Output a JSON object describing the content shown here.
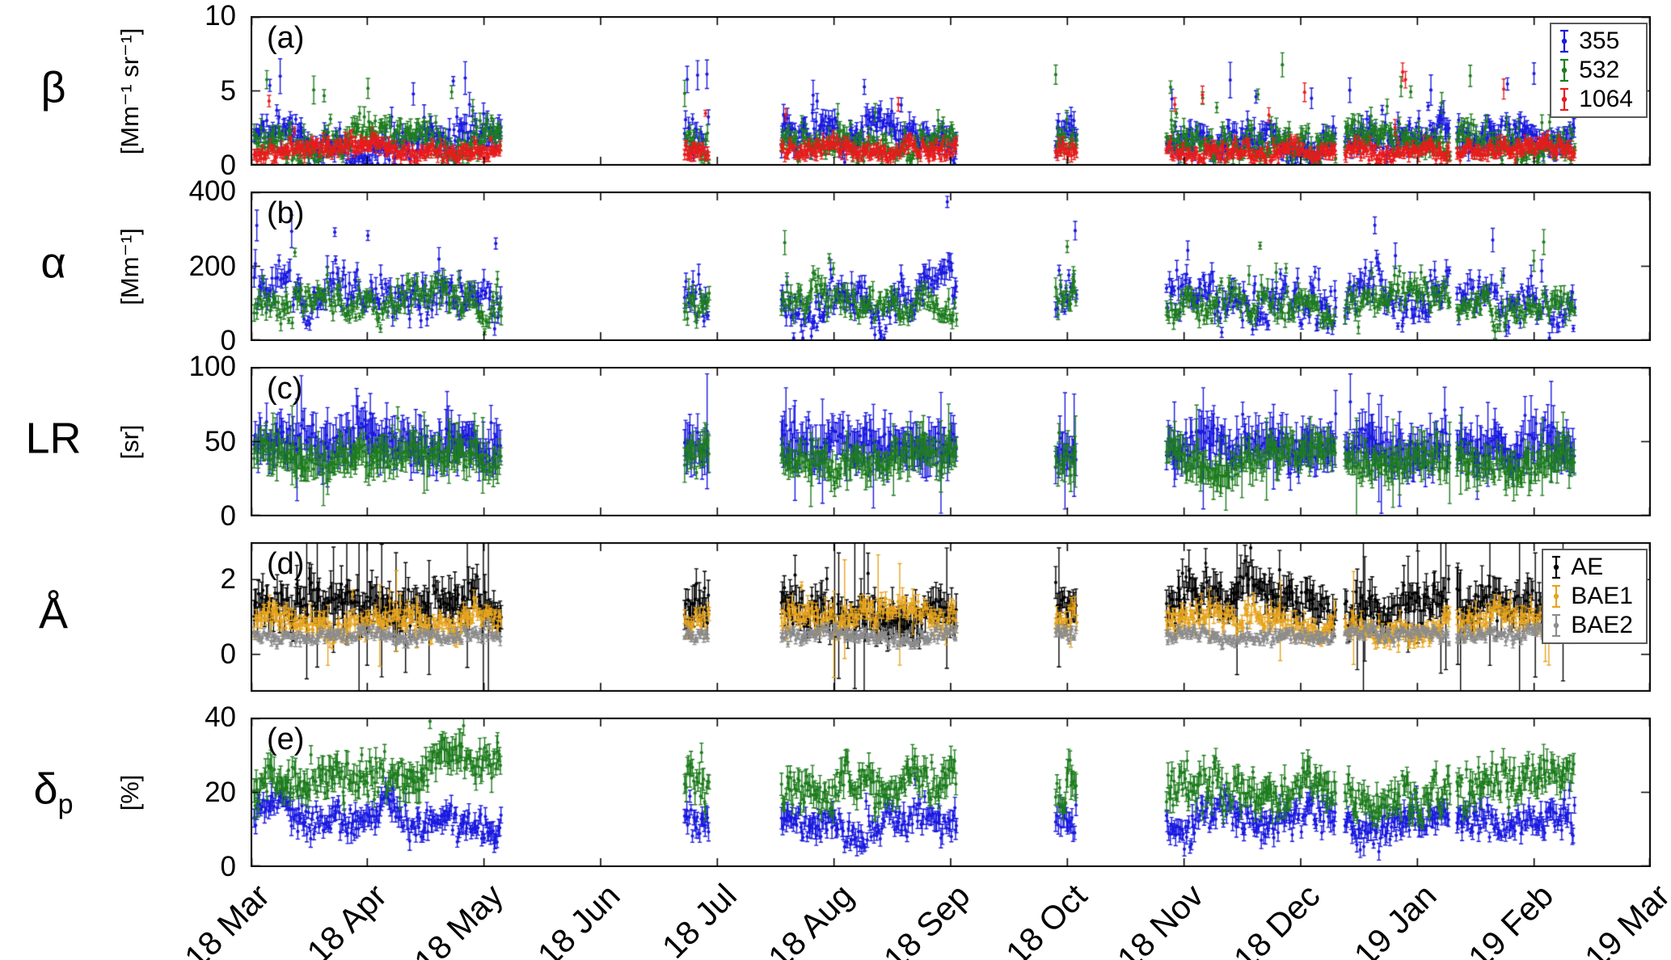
{
  "chart_data": {
    "type": "scatter",
    "description": "Five stacked time-series panels (a)-(e) of lidar-derived aerosol optical properties with vertical error bars, measured from March 2018 to March 2019. Dense point clouds with seasonal data gaps (no data mid-May to late June, most of June-mid July, late September, mid October to early November).",
    "grid": false,
    "x_axis": {
      "tick_labels": [
        "18 Mar",
        "18 Apr",
        "18 May",
        "18 Jun",
        "18 Jul",
        "18 Aug",
        "18 Sep",
        "18 Oct",
        "18 Nov",
        "18 Dec",
        "19 Jan",
        "19 Feb",
        "19 Mar"
      ],
      "range_months": [
        0,
        12
      ],
      "tick_rotation_deg": 45
    },
    "data_segments_months": [
      [
        0.03,
        2.15
      ],
      [
        3.72,
        3.93
      ],
      [
        4.55,
        6.05
      ],
      [
        6.9,
        7.08
      ],
      [
        7.85,
        9.3
      ],
      [
        9.38,
        10.28
      ],
      [
        10.34,
        11.35
      ]
    ],
    "panels": [
      {
        "id": "a",
        "tag": "(a)",
        "ylabel": "β",
        "ysub": "",
        "yunits": "[Mm⁻¹ sr⁻¹]",
        "ylim": [
          0,
          10
        ],
        "yticks": [
          0,
          5,
          10
        ],
        "show_legend": true,
        "legend_position": "top-right",
        "series": [
          {
            "name": "355",
            "color": "#1a1ae0",
            "typical_range": [
              0.3,
              6
            ],
            "base": 1.9,
            "drift": 1.6,
            "noise": 1.3,
            "spikeP": 0.05,
            "spikeAmp": 4.5,
            "vmin": 0.15,
            "vmax": 9.8,
            "err0": 0.35,
            "errF": 0.12,
            "errBigP": 0,
            "errBig": 0,
            "dx": 0.009
          },
          {
            "name": "532",
            "color": "#1e7d1e",
            "typical_range": [
              0.3,
              6
            ],
            "base": 1.7,
            "drift": 1.5,
            "noise": 1.2,
            "spikeP": 0.05,
            "spikeAmp": 5.0,
            "vmin": 0.15,
            "vmax": 9.8,
            "err0": 0.3,
            "errF": 0.12,
            "errBigP": 0,
            "errBig": 0,
            "dx": 0.009
          },
          {
            "name": "1064",
            "color": "#e81c1c",
            "typical_range": [
              0.3,
              2.5
            ],
            "base": 1.0,
            "drift": 0.8,
            "noise": 0.7,
            "spikeP": 0.025,
            "spikeAmp": 5.5,
            "vmin": 0.1,
            "vmax": 9.5,
            "err0": 0.25,
            "errF": 0.1,
            "errBigP": 0,
            "errBig": 0,
            "dx": 0.009
          }
        ]
      },
      {
        "id": "b",
        "tag": "(b)",
        "ylabel": "α",
        "ysub": "",
        "yunits": "[Mm⁻¹]",
        "ylim": [
          0,
          400
        ],
        "yticks": [
          0,
          200,
          400
        ],
        "show_legend": false,
        "series": [
          {
            "name": "355",
            "color": "#1a1ae0",
            "typical_range": [
              20,
              300
            ],
            "base": 115,
            "drift": 130,
            "noise": 65,
            "spikeP": 0.04,
            "spikeAmp": 170,
            "vmin": 8,
            "vmax": 398,
            "err0": 14,
            "errF": 0.1,
            "errBigP": 0,
            "errBig": 0,
            "dx": 0.011
          },
          {
            "name": "532",
            "color": "#1e7d1e",
            "typical_range": [
              20,
              250
            ],
            "base": 88,
            "drift": 100,
            "noise": 50,
            "spikeP": 0.03,
            "spikeAmp": 150,
            "vmin": 8,
            "vmax": 398,
            "err0": 12,
            "errF": 0.1,
            "errBigP": 0,
            "errBig": 0,
            "dx": 0.011
          }
        ]
      },
      {
        "id": "c",
        "tag": "(c)",
        "ylabel": "LR",
        "ysub": "",
        "yunits": "[sr]",
        "ylim": [
          0,
          100
        ],
        "yticks": [
          0,
          50,
          100
        ],
        "show_legend": false,
        "series": [
          {
            "name": "355",
            "color": "#1a1ae0",
            "typical_range": [
              25,
              70
            ],
            "base": 46,
            "drift": 22,
            "noise": 14,
            "spikeP": 0.03,
            "spikeAmp": 28,
            "vmin": 12,
            "vmax": 99,
            "err0": 8,
            "errF": 0.1,
            "errBigP": 0.04,
            "errBig": 18,
            "dx": 0.011
          },
          {
            "name": "532",
            "color": "#1e7d1e",
            "typical_range": [
              25,
              60
            ],
            "base": 40,
            "drift": 18,
            "noise": 11,
            "spikeP": 0.02,
            "spikeAmp": 22,
            "vmin": 12,
            "vmax": 95,
            "err0": 7,
            "errF": 0.08,
            "errBigP": 0.03,
            "errBig": 15,
            "dx": 0.011
          }
        ]
      },
      {
        "id": "d",
        "tag": "(d)",
        "ylabel": "Å",
        "ysub": "",
        "yunits": "",
        "ylim": [
          -1,
          3
        ],
        "yticks": [
          0,
          2
        ],
        "show_legend": true,
        "legend_position": "top-right",
        "series": [
          {
            "name": "AE",
            "color": "#000000",
            "typical_range": [
              0.3,
              2.2
            ],
            "base": 1.25,
            "drift": 0.8,
            "noise": 0.55,
            "spikeP": 0.04,
            "spikeAmp": 0.9,
            "vmin": -0.55,
            "vmax": 2.85,
            "err0": 0.28,
            "errF": 0.1,
            "errBigP": 0.06,
            "errBig": 1.5,
            "dx": 0.011
          },
          {
            "name": "BAE1",
            "color": "#e6a41e",
            "typical_range": [
              0.2,
              1.8
            ],
            "base": 0.85,
            "drift": 0.6,
            "noise": 0.4,
            "spikeP": 0.03,
            "spikeAmp": 0.7,
            "vmin": -0.4,
            "vmax": 2.3,
            "err0": 0.14,
            "errF": 0.08,
            "errBigP": 0.02,
            "errBig": 0.8,
            "dx": 0.011
          },
          {
            "name": "BAE2",
            "color": "#8c8c8c",
            "typical_range": [
              0.2,
              1.0
            ],
            "base": 0.5,
            "drift": 0.25,
            "noise": 0.22,
            "spikeP": 0.01,
            "spikeAmp": 0.4,
            "vmin": -0.3,
            "vmax": 1.5,
            "err0": 0.08,
            "errF": 0.05,
            "errBigP": 0,
            "errBig": 0,
            "dx": 0.011
          }
        ]
      },
      {
        "id": "e",
        "tag": "(e)",
        "ylabel": "δ",
        "ysub": "p",
        "yunits": "[%]",
        "ylim": [
          0,
          40
        ],
        "yticks": [
          0,
          20,
          40
        ],
        "show_legend": false,
        "series": [
          {
            "name": "355",
            "color": "#1a1ae0",
            "typical_range": [
              5,
              25
            ],
            "base": 13,
            "drift": 8,
            "noise": 5,
            "spikeP": 0.02,
            "spikeAmp": 8,
            "vmin": 3,
            "vmax": 38,
            "err0": 1.6,
            "errF": 0.07,
            "errBigP": 0,
            "errBig": 0,
            "dx": 0.01
          },
          {
            "name": "532",
            "color": "#1e7d1e",
            "typical_range": [
              10,
              35
            ],
            "base": 22,
            "drift": 10,
            "noise": 6.5,
            "spikeP": 0.02,
            "spikeAmp": 8,
            "vmin": 6,
            "vmax": 39,
            "err0": 1.8,
            "errF": 0.07,
            "errBigP": 0,
            "errBig": 0,
            "dx": 0.01
          }
        ]
      }
    ]
  }
}
